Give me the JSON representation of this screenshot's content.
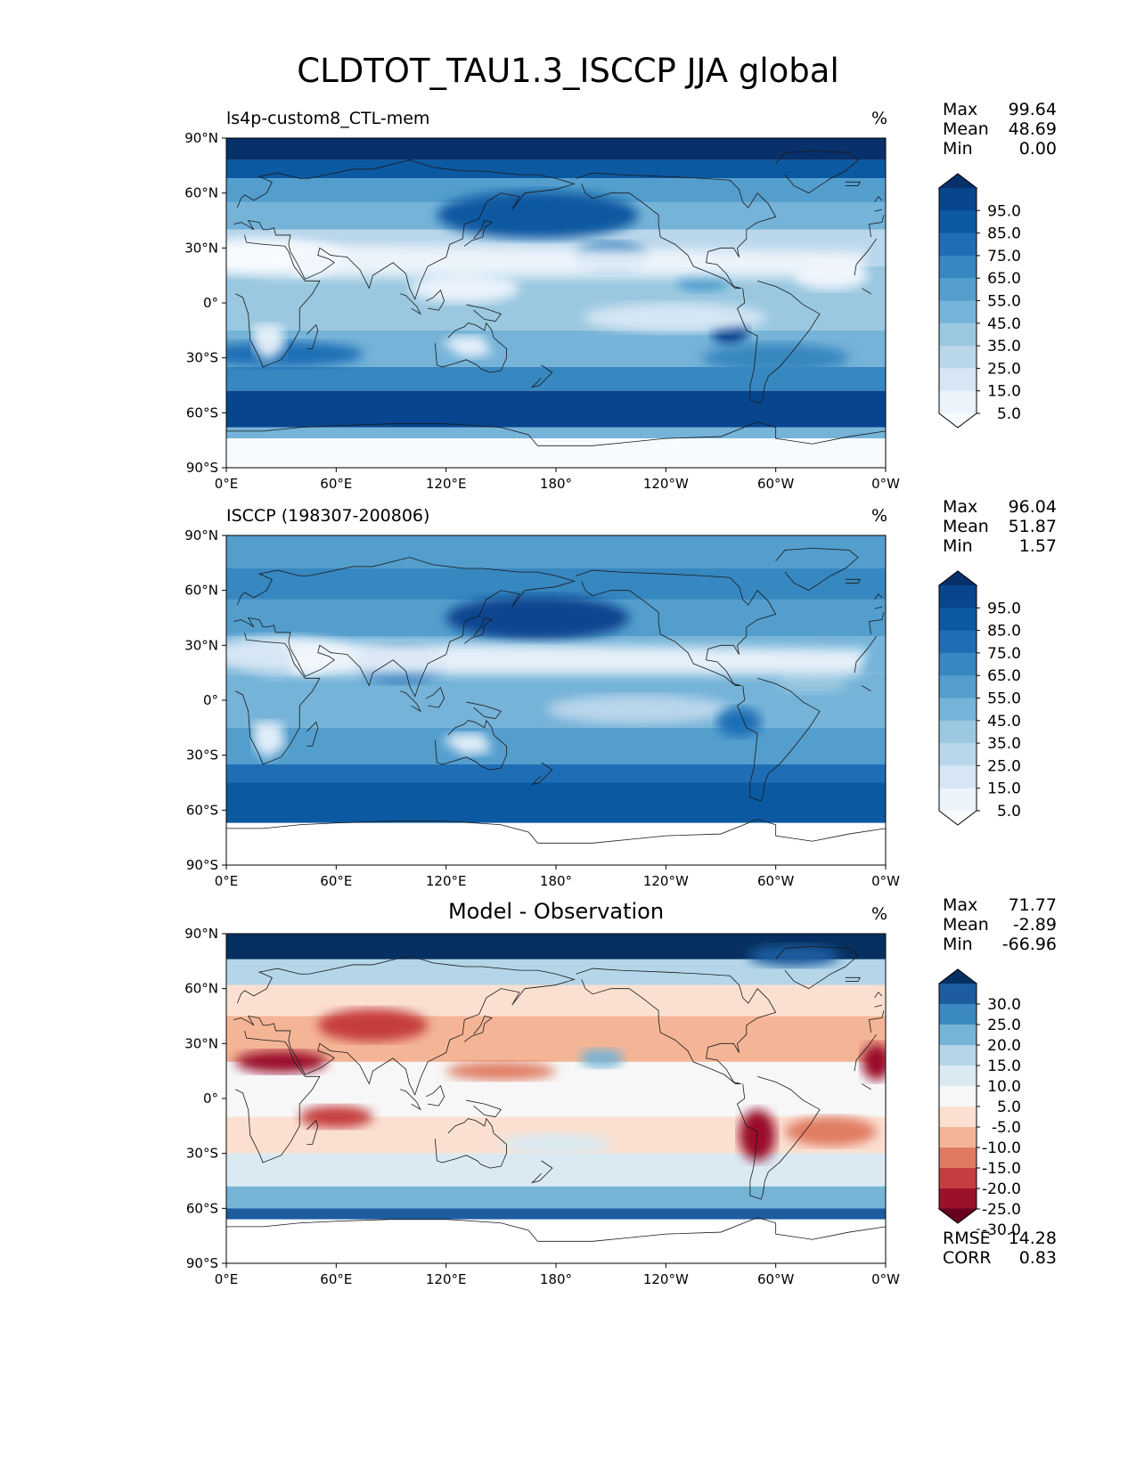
{
  "title": "CLDTOT_TAU1.3_ISCCP JJA global",
  "axes": {
    "lat_ticks": [
      "90°N",
      "60°N",
      "30°N",
      "0°",
      "30°S",
      "60°S",
      "90°S"
    ],
    "lon_ticks": [
      "0°E",
      "60°E",
      "120°E",
      "180°",
      "120°W",
      "60°W",
      "0°W"
    ]
  },
  "panels": [
    {
      "name": "ls4p-custom8_CTL-mem",
      "title": "",
      "units": "%",
      "stats": [
        {
          "label": "Max",
          "value": "99.64"
        },
        {
          "label": "Mean",
          "value": "48.69"
        },
        {
          "label": "Min",
          "value": "0.00"
        }
      ],
      "colorbar": {
        "labels": [
          "95.0",
          "85.0",
          "75.0",
          "65.0",
          "55.0",
          "45.0",
          "35.0",
          "25.0",
          "15.0",
          "5.0"
        ],
        "colors": [
          "#08306b",
          "#08458f",
          "#0b59a1",
          "#1f6eb5",
          "#3787c0",
          "#539ecd",
          "#75b3d8",
          "#9ac8e0",
          "#bad6eb",
          "#d6e6f4",
          "#ebf3fb",
          "#f7fbff"
        ]
      },
      "footer": []
    },
    {
      "name": "ISCCP (198307-200806)",
      "title": "",
      "units": "%",
      "stats": [
        {
          "label": "Max",
          "value": "96.04"
        },
        {
          "label": "Mean",
          "value": "51.87"
        },
        {
          "label": "Min",
          "value": "1.57"
        }
      ],
      "colorbar": {
        "labels": [
          "95.0",
          "85.0",
          "75.0",
          "65.0",
          "55.0",
          "45.0",
          "35.0",
          "25.0",
          "15.0",
          "5.0"
        ],
        "colors": [
          "#08306b",
          "#08458f",
          "#0b59a1",
          "#1f6eb5",
          "#3787c0",
          "#539ecd",
          "#75b3d8",
          "#9ac8e0",
          "#bad6eb",
          "#d6e6f4",
          "#ebf3fb",
          "#f7fbff"
        ]
      },
      "footer": []
    },
    {
      "name": "",
      "title": "Model - Observation",
      "units": "%",
      "stats": [
        {
          "label": "Max",
          "value": "71.77"
        },
        {
          "label": "Mean",
          "value": "-2.89"
        },
        {
          "label": "Min",
          "value": "-66.96"
        }
      ],
      "colorbar": {
        "labels": [
          "30.0",
          "25.0",
          "20.0",
          "15.0",
          "10.0",
          "5.0",
          "-5.0",
          "-10.0",
          "-15.0",
          "-20.0",
          "-25.0",
          "-30.0"
        ],
        "colors": [
          "#053061",
          "#1c5c9f",
          "#3a89c0",
          "#75b4d5",
          "#b4d6e8",
          "#dbeaf2",
          "#f7f7f7",
          "#fbe0d1",
          "#f4b596",
          "#e07b62",
          "#c53d3e",
          "#9a1129",
          "#67001f"
        ]
      },
      "footer": [
        {
          "label": "RMSE",
          "value": "14.28"
        },
        {
          "label": "CORR",
          "value": "0.83"
        }
      ]
    }
  ],
  "chart_data": [
    {
      "type": "heatmap",
      "title": "ls4p-custom8_CTL-mem",
      "units": "%",
      "x_range": [
        0,
        360
      ],
      "y_range": [
        -90,
        90
      ],
      "xlabel": "",
      "ylabel": "",
      "stats": {
        "max": 99.64,
        "mean": 48.69,
        "min": 0.0
      },
      "levels": [
        0,
        5,
        15,
        25,
        35,
        45,
        55,
        65,
        75,
        85,
        95,
        100
      ],
      "colormap": "Blues",
      "features": [
        {
          "region": "Arctic (70-90N)",
          "value_range": [
            85,
            100
          ]
        },
        {
          "region": "Southern Ocean storm track (40-65S)",
          "value_range": [
            75,
            95
          ]
        },
        {
          "region": "Sahara / Arabia",
          "value_range": [
            0,
            15
          ]
        },
        {
          "region": "Southern Africa / Australia interior",
          "value_range": [
            5,
            25
          ]
        },
        {
          "region": "North Pacific (30-60N)",
          "value_range": [
            65,
            90
          ]
        },
        {
          "region": "Antarctica",
          "value_range": [
            0,
            5
          ]
        }
      ]
    },
    {
      "type": "heatmap",
      "title": "ISCCP (198307-200806)",
      "units": "%",
      "x_range": [
        0,
        360
      ],
      "y_range": [
        -90,
        90
      ],
      "xlabel": "",
      "ylabel": "",
      "stats": {
        "max": 96.04,
        "mean": 51.87,
        "min": 1.57
      },
      "levels": [
        0,
        5,
        15,
        25,
        35,
        45,
        55,
        65,
        75,
        85,
        95,
        100
      ],
      "colormap": "Blues",
      "missing_region": "south of ~65S (no data)",
      "features": [
        {
          "region": "Arctic (70-90N)",
          "value_range": [
            55,
            75
          ]
        },
        {
          "region": "Southern Ocean storm track (40-65S)",
          "value_range": [
            75,
            90
          ]
        },
        {
          "region": "Sahara / Arabia",
          "value_range": [
            5,
            25
          ]
        },
        {
          "region": "North Pacific (30-60N)",
          "value_range": [
            75,
            90
          ]
        }
      ]
    },
    {
      "type": "heatmap",
      "title": "Model - Observation",
      "units": "%",
      "x_range": [
        0,
        360
      ],
      "y_range": [
        -90,
        90
      ],
      "xlabel": "",
      "ylabel": "",
      "stats": {
        "max": 71.77,
        "mean": -2.89,
        "min": -66.96,
        "rmse": 14.28,
        "corr": 0.83
      },
      "levels": [
        -30,
        -25,
        -20,
        -15,
        -10,
        -5,
        5,
        10,
        15,
        20,
        25,
        30
      ],
      "colormap": "RdBu_r",
      "features": [
        {
          "region": "Arctic",
          "value_range": [
            20,
            40
          ]
        },
        {
          "region": "Eurasia / Sahel",
          "value_range": [
            -30,
            -10
          ]
        },
        {
          "region": "South America (Andes/Amazon)",
          "value_range": [
            -35,
            -15
          ]
        },
        {
          "region": "West Africa coast",
          "value_range": [
            -30,
            -15
          ]
        },
        {
          "region": "Southern Ocean (~60S)",
          "value_range": [
            15,
            35
          ]
        },
        {
          "region": "Tropical oceans",
          "value_range": [
            -15,
            5
          ]
        }
      ]
    }
  ]
}
